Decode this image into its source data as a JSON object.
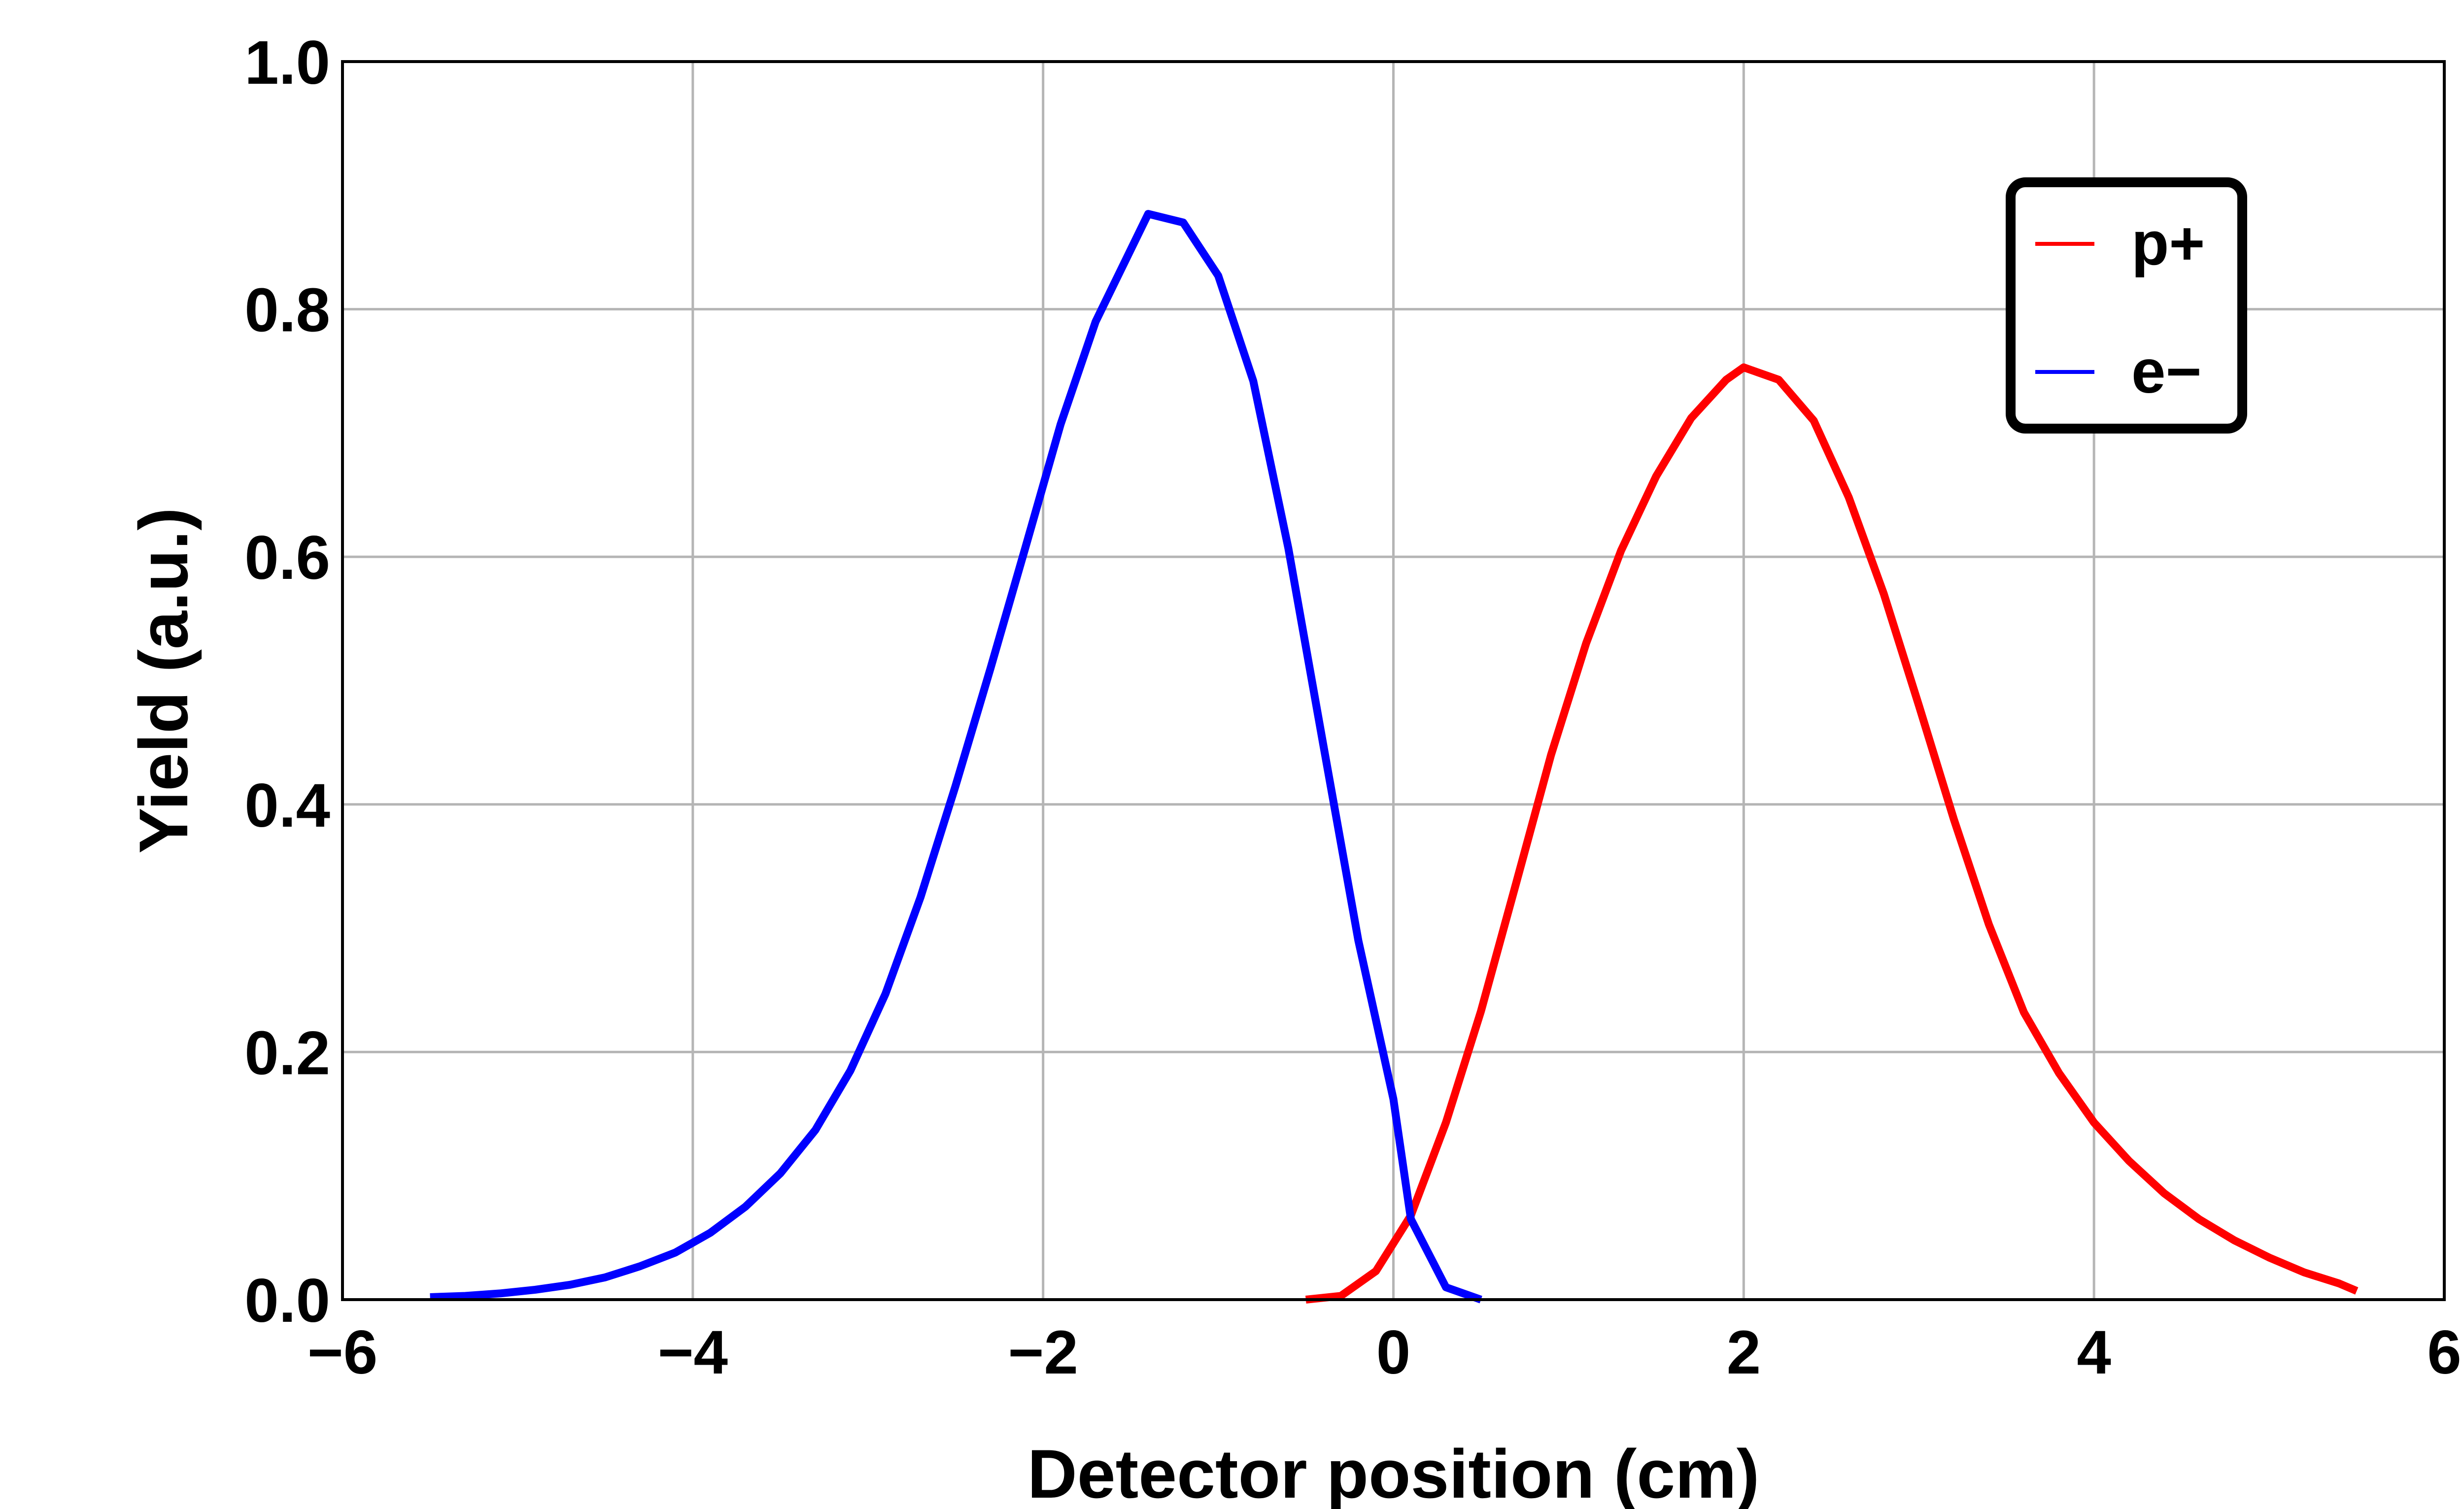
{
  "chart_data": {
    "type": "line",
    "title": "",
    "xlabel": "Detector position (cm)",
    "ylabel": "Yield (a.u.)",
    "xlim": [
      -6,
      6
    ],
    "ylim": [
      0,
      1.0
    ],
    "xticks": [
      -6,
      -4,
      -2,
      0,
      2,
      4,
      6
    ],
    "xtick_labels": [
      "−6",
      "−4",
      "−2",
      "0",
      "2",
      "4",
      "6"
    ],
    "yticks": [
      0.0,
      0.2,
      0.4,
      0.6,
      0.8,
      1.0
    ],
    "ytick_labels": [
      "0.0",
      "0.2",
      "0.4",
      "0.6",
      "0.8",
      "1.0"
    ],
    "grid": true,
    "legend_position": "top-right",
    "series": [
      {
        "name": "p+",
        "color": "#ff0000",
        "x": [
          -0.5,
          -0.3,
          -0.1,
          0.1,
          0.3,
          0.5,
          0.7,
          0.9,
          1.1,
          1.3,
          1.5,
          1.7,
          1.9,
          2.0,
          2.2,
          2.4,
          2.6,
          2.8,
          3.0,
          3.2,
          3.4,
          3.6,
          3.8,
          4.0,
          4.2,
          4.4,
          4.6,
          4.8,
          5.0,
          5.2,
          5.4,
          5.5
        ],
        "y": [
          0.0,
          0.003,
          0.023,
          0.068,
          0.143,
          0.233,
          0.336,
          0.44,
          0.53,
          0.605,
          0.665,
          0.712,
          0.743,
          0.753,
          0.743,
          0.71,
          0.648,
          0.57,
          0.48,
          0.388,
          0.303,
          0.232,
          0.183,
          0.143,
          0.112,
          0.086,
          0.065,
          0.048,
          0.034,
          0.022,
          0.013,
          0.007
        ]
      },
      {
        "name": "e−",
        "color": "#0000ff",
        "x": [
          -5.5,
          -5.3,
          -5.1,
          -4.9,
          -4.7,
          -4.5,
          -4.3,
          -4.1,
          -3.9,
          -3.7,
          -3.5,
          -3.3,
          -3.1,
          -2.9,
          -2.7,
          -2.5,
          -2.3,
          -2.1,
          -1.9,
          -1.7,
          -1.5,
          -1.4,
          -1.2,
          -1.0,
          -0.8,
          -0.6,
          -0.4,
          -0.2,
          0.0,
          0.1,
          0.3,
          0.5
        ],
        "y": [
          0.002,
          0.003,
          0.005,
          0.008,
          0.012,
          0.018,
          0.027,
          0.038,
          0.054,
          0.075,
          0.102,
          0.137,
          0.185,
          0.247,
          0.325,
          0.415,
          0.51,
          0.608,
          0.707,
          0.79,
          0.848,
          0.877,
          0.87,
          0.827,
          0.742,
          0.607,
          0.448,
          0.29,
          0.162,
          0.065,
          0.01,
          0.0
        ]
      }
    ]
  }
}
